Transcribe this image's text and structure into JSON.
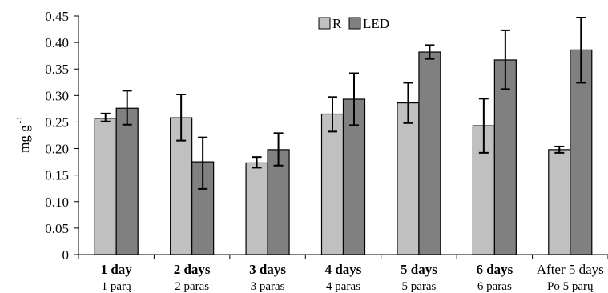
{
  "chart_data": {
    "type": "bar",
    "ylabel": "mg g",
    "ylabel_superscript": "-1",
    "ylim": [
      0,
      0.45
    ],
    "yticks": [
      "0",
      "0.05",
      "0.10",
      "0.15",
      "0.20",
      "0.25",
      "0.30",
      "0.35",
      "0.40",
      "0.45"
    ],
    "categories": [
      "1 day",
      "2 days",
      "3 days",
      "4 days",
      "5 days",
      "6 days",
      "After 5 days"
    ],
    "categories_sub": [
      "1 parą",
      "2 paras",
      "3 paras",
      "4 paras",
      "5 paras",
      "6 paras",
      "Po 5 parų"
    ],
    "legend_position": "top-center",
    "grid": false,
    "series": [
      {
        "name": "R",
        "color": "#c0c0c0",
        "values": [
          0.257,
          0.258,
          0.173,
          0.265,
          0.286,
          0.243,
          0.198
        ],
        "err_low": [
          0.251,
          0.215,
          0.164,
          0.232,
          0.248,
          0.192,
          0.192
        ],
        "err_high": [
          0.266,
          0.302,
          0.184,
          0.297,
          0.324,
          0.294,
          0.204
        ]
      },
      {
        "name": "LED",
        "color": "#808080",
        "values": [
          0.276,
          0.175,
          0.198,
          0.293,
          0.382,
          0.367,
          0.386
        ],
        "err_low": [
          0.245,
          0.124,
          0.168,
          0.244,
          0.369,
          0.312,
          0.324
        ],
        "err_high": [
          0.309,
          0.221,
          0.229,
          0.342,
          0.395,
          0.423,
          0.447
        ]
      }
    ]
  }
}
